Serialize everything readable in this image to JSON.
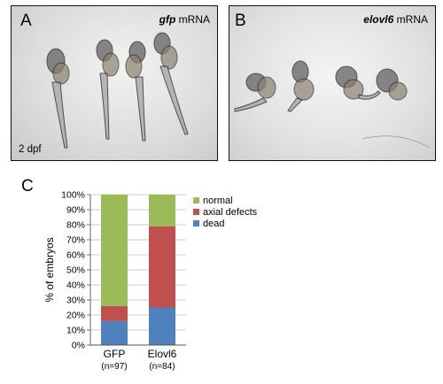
{
  "panels": {
    "a": {
      "letter": "A",
      "gene": "gfp",
      "suffix": " mRNA",
      "stage": "2 dpf"
    },
    "b": {
      "letter": "B",
      "gene": "elovl6",
      "suffix": " mRNA"
    },
    "c": {
      "letter": "C"
    }
  },
  "colors": {
    "normal": "#9bbb59",
    "axial_defects": "#c0504d",
    "dead": "#4f81bd"
  },
  "chart_data": {
    "type": "bar",
    "stacked": true,
    "categories": [
      "GFP",
      "Elovl6"
    ],
    "category_sublabels": [
      "(n=97)",
      "(n=84)"
    ],
    "series": [
      {
        "name": "dead",
        "values": [
          16,
          25
        ]
      },
      {
        "name": "axial defects",
        "values": [
          10,
          54
        ]
      },
      {
        "name": "normal",
        "values": [
          74,
          21
        ]
      }
    ],
    "legend_order": [
      "normal",
      "axial defects",
      "dead"
    ],
    "ylabel": "% of embryos",
    "ylim": [
      0,
      100
    ],
    "yticks": [
      "0%",
      "10%",
      "20%",
      "30%",
      "40%",
      "50%",
      "60%",
      "70%",
      "80%",
      "90%",
      "100%"
    ],
    "grid": true,
    "legend_position": "right"
  }
}
